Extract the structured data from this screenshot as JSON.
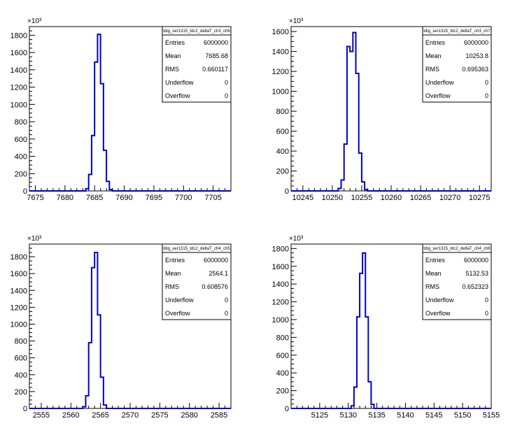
{
  "chart_data": [
    {
      "type": "histogram",
      "stats_title": "tdig_ser1315_tdc2_deltaT_ch3_ch6",
      "stats": [
        {
          "label": "Entries",
          "value": "6000000"
        },
        {
          "label": "Mean",
          "value": "7685.68"
        },
        {
          "label": "RMS",
          "value": "0.660117"
        },
        {
          "label": "Underflow",
          "value": "0"
        },
        {
          "label": "Overflow",
          "value": "0"
        }
      ],
      "y_exponent_label": "×10³",
      "xlim": [
        7674,
        7708
      ],
      "ylim": [
        0,
        1900
      ],
      "xticks": [
        7675,
        7680,
        7685,
        7690,
        7695,
        7700,
        7705
      ],
      "yticks": [
        0,
        200,
        400,
        600,
        800,
        1000,
        1200,
        1400,
        1600,
        1800
      ],
      "bin_width": 0.5,
      "bins": [
        {
          "x": 7683.5,
          "y": 25
        },
        {
          "x": 7684.0,
          "y": 190
        },
        {
          "x": 7684.5,
          "y": 640
        },
        {
          "x": 7685.0,
          "y": 1490
        },
        {
          "x": 7685.5,
          "y": 1810
        },
        {
          "x": 7686.0,
          "y": 1240
        },
        {
          "x": 7686.5,
          "y": 470
        },
        {
          "x": 7687.0,
          "y": 110
        },
        {
          "x": 7687.5,
          "y": 15
        }
      ]
    },
    {
      "type": "histogram",
      "stats_title": "tdig_ser1315_tdc2_deltaT_ch3_ch7",
      "stats": [
        {
          "label": "Entries",
          "value": "6000000"
        },
        {
          "label": "Mean",
          "value": "10253.8"
        },
        {
          "label": "RMS",
          "value": "0.695363"
        },
        {
          "label": "Underflow",
          "value": "0"
        },
        {
          "label": "Overflow",
          "value": "0"
        }
      ],
      "y_exponent_label": "×10³",
      "xlim": [
        10243,
        10277
      ],
      "ylim": [
        0,
        1650
      ],
      "xticks": [
        10245,
        10250,
        10255,
        10260,
        10265,
        10270,
        10275
      ],
      "yticks": [
        0,
        200,
        400,
        600,
        800,
        1000,
        1200,
        1400,
        1600
      ],
      "bin_width": 0.5,
      "bins": [
        {
          "x": 10251.0,
          "y": 25
        },
        {
          "x": 10251.5,
          "y": 110
        },
        {
          "x": 10252.0,
          "y": 470
        },
        {
          "x": 10252.5,
          "y": 1450
        },
        {
          "x": 10253.0,
          "y": 1400
        },
        {
          "x": 10253.5,
          "y": 1590
        },
        {
          "x": 10254.0,
          "y": 1180
        },
        {
          "x": 10254.5,
          "y": 380
        },
        {
          "x": 10255.0,
          "y": 90
        },
        {
          "x": 10255.5,
          "y": 12
        }
      ]
    },
    {
      "type": "histogram",
      "stats_title": "tdig_ser1315_tdc2_deltaT_ch4_ch5",
      "stats": [
        {
          "label": "Entries",
          "value": "6000000"
        },
        {
          "label": "Mean",
          "value": "2564.1"
        },
        {
          "label": "RMS",
          "value": "0.608576"
        },
        {
          "label": "Underflow",
          "value": "0"
        },
        {
          "label": "Overflow",
          "value": "0"
        }
      ],
      "y_exponent_label": "×10³",
      "xlim": [
        2553,
        2587
      ],
      "ylim": [
        0,
        1950
      ],
      "xticks": [
        2555,
        2560,
        2565,
        2570,
        2575,
        2580,
        2585
      ],
      "yticks": [
        0,
        200,
        400,
        600,
        800,
        1000,
        1200,
        1400,
        1600,
        1800
      ],
      "bin_width": 0.5,
      "bins": [
        {
          "x": 2562.0,
          "y": 20
        },
        {
          "x": 2562.5,
          "y": 150
        },
        {
          "x": 2563.0,
          "y": 780
        },
        {
          "x": 2563.5,
          "y": 1670
        },
        {
          "x": 2564.0,
          "y": 1850
        },
        {
          "x": 2564.5,
          "y": 1110
        },
        {
          "x": 2565.0,
          "y": 370
        },
        {
          "x": 2565.5,
          "y": 40
        }
      ]
    },
    {
      "type": "histogram",
      "stats_title": "tdig_ser1315_tdc2_deltaT_ch4_ch6",
      "stats": [
        {
          "label": "Entries",
          "value": "6000000"
        },
        {
          "label": "Mean",
          "value": "5132.53"
        },
        {
          "label": "RMS",
          "value": "0.652323"
        },
        {
          "label": "Underflow",
          "value": "0"
        },
        {
          "label": "Overflow",
          "value": "0"
        }
      ],
      "y_exponent_label": "×10³",
      "xlim": [
        5120,
        5155
      ],
      "ylim": [
        0,
        1850
      ],
      "xticks": [
        5125,
        5130,
        5135,
        5140,
        5145,
        5150,
        5155
      ],
      "yticks": [
        0,
        200,
        400,
        600,
        800,
        1000,
        1200,
        1400,
        1600,
        1800
      ],
      "bin_width": 0.5,
      "bins": [
        {
          "x": 5130.5,
          "y": 30
        },
        {
          "x": 5131.0,
          "y": 240
        },
        {
          "x": 5131.5,
          "y": 1030
        },
        {
          "x": 5132.0,
          "y": 1520
        },
        {
          "x": 5132.5,
          "y": 1750
        },
        {
          "x": 5133.0,
          "y": 1030
        },
        {
          "x": 5133.5,
          "y": 300
        },
        {
          "x": 5134.0,
          "y": 45
        }
      ]
    }
  ],
  "style": {
    "line_color": "#0000cc",
    "axis_color": "#000000"
  }
}
